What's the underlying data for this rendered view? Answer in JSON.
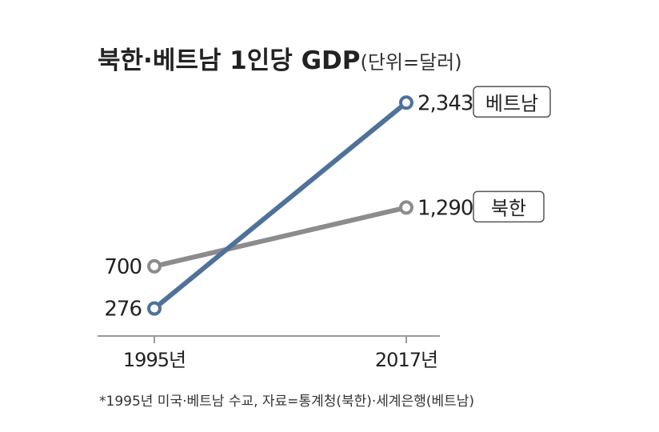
{
  "chart_data": {
    "type": "line",
    "title": "북한·베트남 1인당 GDP",
    "unit": "(단위=달러)",
    "categories": [
      "1995년",
      "2017년"
    ],
    "series": [
      {
        "name": "북한",
        "values": [
          700,
          1290
        ],
        "value_labels": [
          "700",
          "1,290"
        ],
        "color": "#8c8c8c"
      },
      {
        "name": "베트남",
        "values": [
          276,
          2343
        ],
        "value_labels": [
          "276",
          "2,343"
        ],
        "color": "#4e729a"
      }
    ],
    "ylim": [
      0,
      2600
    ],
    "grid": false,
    "footnote": "*1995년 미국·베트남 수교, 자료=통계청(북한)·세계은행(베트남)"
  }
}
